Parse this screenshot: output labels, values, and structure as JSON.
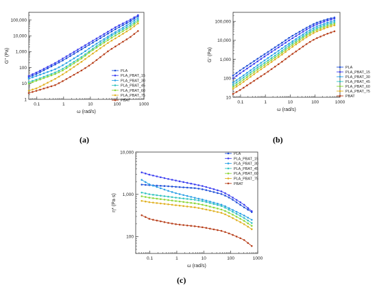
{
  "series_names": [
    "PLA",
    "PLA_PBAT_15",
    "PLA_PBAT_30",
    "PLA_PBAT_45",
    "PLA_PBAT_60",
    "PLA_PBAT_75",
    "PBAT"
  ],
  "series_colors": [
    "#1f4fd8",
    "#3a3df0",
    "#2aa0e6",
    "#35c4c0",
    "#8cd63a",
    "#e0b020",
    "#b8401c"
  ],
  "chart_data": [
    {
      "id": "a",
      "panel_label": "(a)",
      "type": "line",
      "scale": "log-log",
      "xlabel": "ω (rad/s)",
      "ylabel": "G'' (Pa)",
      "xlim": [
        0.05,
        1000
      ],
      "ylim": [
        1,
        300000
      ],
      "xticks": [
        0.1,
        1,
        10,
        100,
        1000
      ],
      "xticklabels": [
        "0.1",
        "1",
        "10",
        "100",
        "1000"
      ],
      "yticks": [
        1,
        10,
        100,
        1000,
        10000,
        100000
      ],
      "yticklabels": [
        "1",
        "10",
        "100",
        "1,000",
        "10,000",
        "100,000"
      ],
      "legend": "right-middle",
      "x": [
        0.05,
        0.1,
        0.5,
        1,
        5,
        10,
        50,
        100,
        300,
        600
      ],
      "series": [
        {
          "name": "PLA",
          "values": [
            25,
            40,
            160,
            300,
            1500,
            3000,
            15000,
            30000,
            80000,
            170000
          ]
        },
        {
          "name": "PLA_PBAT_15",
          "values": [
            30,
            50,
            200,
            400,
            2000,
            4000,
            20000,
            40000,
            100000,
            200000
          ]
        },
        {
          "name": "PLA_PBAT_30",
          "values": [
            20,
            30,
            80,
            150,
            800,
            1800,
            10000,
            20000,
            60000,
            130000
          ]
        },
        {
          "name": "PLA_PBAT_45",
          "values": [
            12,
            18,
            50,
            90,
            500,
            1200,
            8000,
            16000,
            45000,
            100000
          ]
        },
        {
          "name": "PLA_PBAT_60",
          "values": [
            10,
            15,
            40,
            70,
            400,
            1000,
            6000,
            12000,
            35000,
            80000
          ]
        },
        {
          "name": "PLA_PBAT_75",
          "values": [
            3.5,
            5,
            20,
            40,
            250,
            600,
            4000,
            8000,
            25000,
            60000
          ]
        },
        {
          "name": "PBAT",
          "values": [
            2.5,
            3.5,
            8,
            15,
            70,
            150,
            1200,
            2500,
            8000,
            20000
          ]
        }
      ]
    },
    {
      "id": "b",
      "panel_label": "(b)",
      "type": "line",
      "scale": "log-log",
      "xlabel": "ω (rad/s)",
      "ylabel": "G' (Pa)",
      "xlim": [
        0.05,
        1000
      ],
      "ylim": [
        10,
        300000
      ],
      "xticks": [
        0.1,
        1,
        10,
        100,
        1000
      ],
      "xticklabels": [
        "0.1",
        "1",
        "10",
        "100",
        "1000"
      ],
      "yticks": [
        10,
        100,
        1000,
        10000,
        100000
      ],
      "yticklabels": [
        "10",
        "100",
        "1,000",
        "10,000",
        "100,000"
      ],
      "legend": "bottom-right",
      "x": [
        0.05,
        0.1,
        0.5,
        1,
        5,
        10,
        50,
        100,
        300,
        600
      ],
      "series": [
        {
          "name": "PLA",
          "values": [
            140,
            270,
            1100,
            2000,
            8000,
            15000,
            50000,
            80000,
            130000,
            160000
          ]
        },
        {
          "name": "PLA_PBAT_15",
          "values": [
            100,
            190,
            800,
            1500,
            6000,
            11000,
            40000,
            65000,
            110000,
            140000
          ]
        },
        {
          "name": "PLA_PBAT_30",
          "values": [
            60,
            110,
            500,
            950,
            4000,
            7500,
            30000,
            50000,
            85000,
            110000
          ]
        },
        {
          "name": "PLA_PBAT_45",
          "values": [
            45,
            85,
            380,
            700,
            3000,
            6000,
            24000,
            40000,
            70000,
            90000
          ]
        },
        {
          "name": "PLA_PBAT_60",
          "values": [
            35,
            65,
            300,
            550,
            2400,
            4800,
            20000,
            33000,
            58000,
            75000
          ]
        },
        {
          "name": "PLA_PBAT_75",
          "values": [
            28,
            50,
            230,
            430,
            1900,
            3800,
            16000,
            27000,
            48000,
            62000
          ]
        },
        {
          "name": "PBAT",
          "values": [
            15,
            25,
            100,
            180,
            800,
            1600,
            7000,
            12000,
            22000,
            30000
          ]
        }
      ]
    },
    {
      "id": "c",
      "panel_label": "(c)",
      "type": "line",
      "scale": "log-log",
      "xlabel": "ω (rad/s)",
      "ylabel": "η* (Pa·s)",
      "xlim": [
        0.03,
        1000
      ],
      "ylim": [
        40,
        10000
      ],
      "xticks": [
        0.1,
        1,
        10,
        100,
        1000
      ],
      "xticklabels": [
        "0.1",
        "1",
        "10",
        "100",
        "1000"
      ],
      "yticks": [
        100,
        1000,
        10000
      ],
      "yticklabels": [
        "100",
        "1,000",
        "10,000"
      ],
      "legend": "top-right",
      "x": [
        0.05,
        0.1,
        0.5,
        1,
        5,
        10,
        50,
        100,
        300,
        600
      ],
      "series": [
        {
          "name": "PLA",
          "values": [
            1700,
            1650,
            1550,
            1500,
            1400,
            1300,
            1000,
            800,
            500,
            380
          ]
        },
        {
          "name": "PLA_PBAT_15",
          "values": [
            3300,
            2900,
            2300,
            2100,
            1700,
            1550,
            1150,
            900,
            580,
            400
          ]
        },
        {
          "name": "PLA_PBAT_30",
          "values": [
            2200,
            1700,
            1200,
            1050,
            820,
            740,
            560,
            450,
            320,
            250
          ]
        },
        {
          "name": "PLA_PBAT_45",
          "values": [
            1100,
            1000,
            880,
            830,
            740,
            680,
            520,
            410,
            280,
            210
          ]
        },
        {
          "name": "PLA_PBAT_60",
          "values": [
            900,
            830,
            730,
            690,
            610,
            560,
            430,
            350,
            240,
            180
          ]
        },
        {
          "name": "PLA_PBAT_75",
          "values": [
            700,
            650,
            580,
            550,
            490,
            450,
            360,
            290,
            200,
            150
          ]
        },
        {
          "name": "PBAT",
          "values": [
            320,
            260,
            210,
            195,
            175,
            165,
            135,
            115,
            85,
            60
          ]
        }
      ]
    }
  ]
}
